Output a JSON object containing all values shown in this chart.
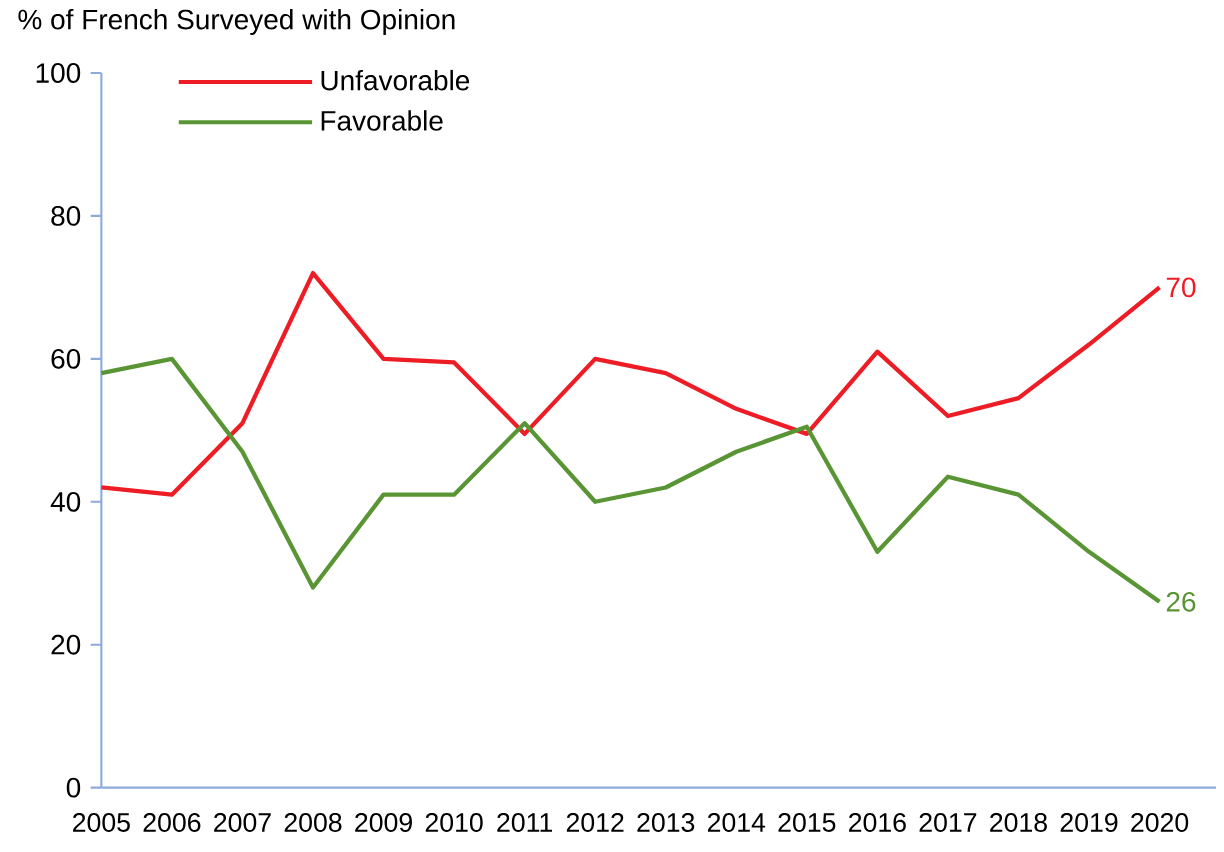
{
  "chart_data": {
    "type": "line",
    "ylabel": "% of French Surveyed with Opinion",
    "categories": [
      "2005",
      "2006",
      "2007",
      "2008",
      "2009",
      "2010",
      "2011",
      "2012",
      "2013",
      "2014",
      "2015",
      "2016",
      "2017",
      "2018",
      "2019",
      "2020"
    ],
    "series": [
      {
        "name": "Unfavorable",
        "color": "#ee1c25",
        "values": [
          42,
          41,
          51,
          72,
          60,
          59.5,
          49.5,
          60,
          58,
          53,
          49.5,
          61,
          52,
          54.5,
          62,
          70
        ]
      },
      {
        "name": "Favorable",
        "color": "#5a9535",
        "values": [
          58,
          60,
          47,
          28,
          41,
          41,
          51,
          40,
          42,
          47,
          50.5,
          33,
          43.5,
          41,
          33,
          26
        ]
      }
    ],
    "ylim": [
      0,
      100
    ],
    "yticks": [
      0,
      20,
      40,
      60,
      80,
      100
    ],
    "grid": false,
    "legend": "top left",
    "marker": "none",
    "line_style": "solid",
    "annotations": [
      {
        "text": "70",
        "x": "2020",
        "y": 70
      },
      {
        "text": "26",
        "x": "2020",
        "y": 26
      }
    ]
  }
}
